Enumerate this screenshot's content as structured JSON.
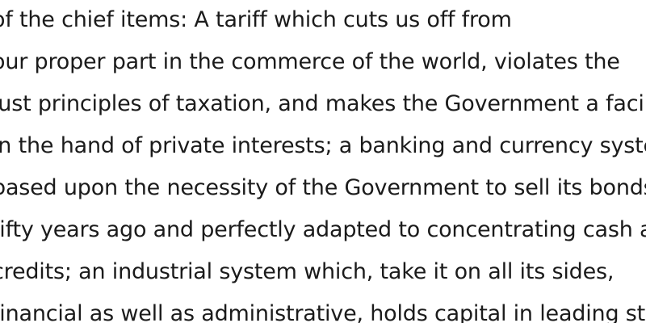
{
  "document": {
    "lines": [
      "of the chief items: A tariff which cuts us off from",
      "our proper part in the commerce of the world, violates the",
      "just principles of taxation, and makes the Government a facile",
      "in the hand of private interests; a banking and currency system",
      "based upon the necessity of the Government to sell its bonds",
      "fifty years ago and perfectly adapted to concentrating cash and",
      "credits; an industrial system which, take it on all its sides,",
      "financial as well as administrative, holds capital in leading strings"
    ]
  }
}
